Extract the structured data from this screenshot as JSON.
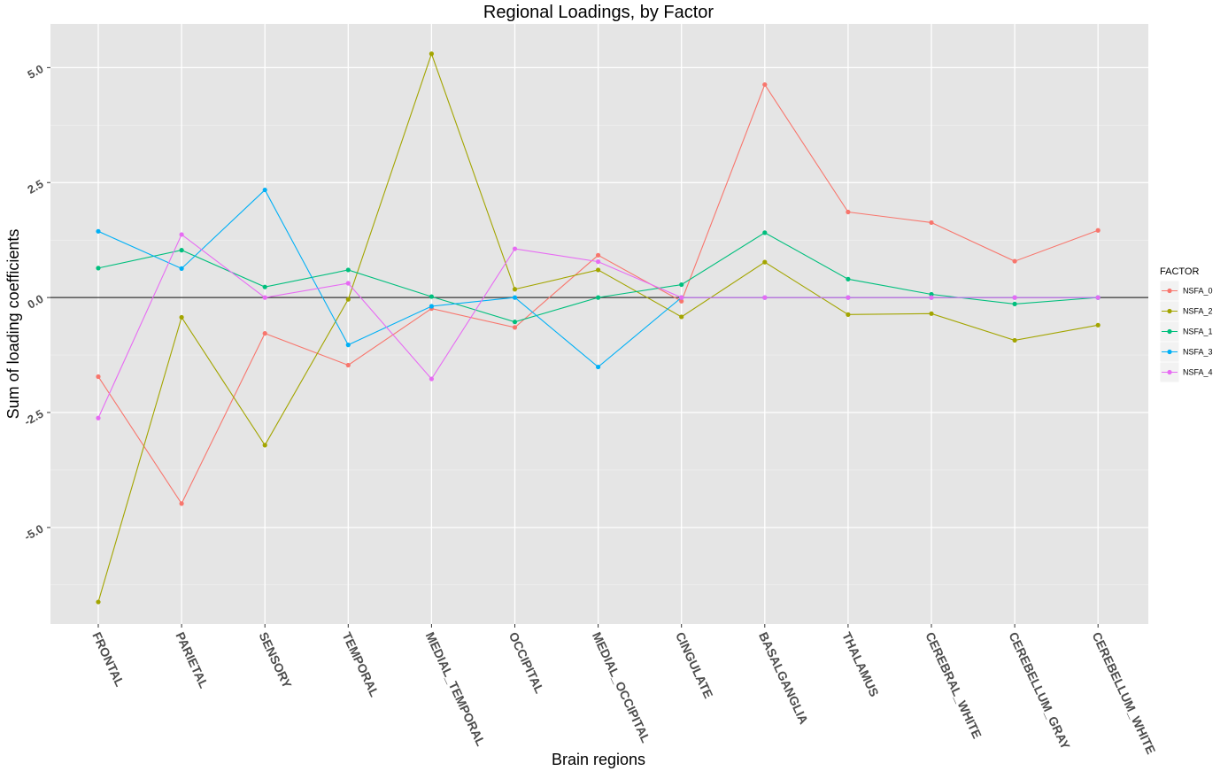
{
  "chart_data": {
    "type": "line",
    "title": "Regional Loadings, by Factor",
    "xlabel": "Brain regions",
    "ylabel": "Sum of loading coefficients",
    "categories": [
      "FRONTAL",
      "PARIETAL",
      "SENSORY",
      "TEMPORAL",
      "MEDIAL_TEMPORAL",
      "OCCIPITAL",
      "MEDIAL_OCCIPITAL",
      "CINGULATE",
      "BASALGANGLIA",
      "THALAMUS",
      "CEREBRAL_WHITE",
      "CEREBELLUM_GRAY",
      "CEREBELLUM_WHITE"
    ],
    "ylim": [
      -7.1,
      5.95
    ],
    "yticks": [
      -5.0,
      -2.5,
      0.0,
      2.5,
      5.0
    ],
    "ytick_labels": [
      "-5.0",
      "-2.5",
      "0.0",
      "2.5",
      "5.0"
    ],
    "hline": 0,
    "grid": true,
    "legend_title": "FACTOR",
    "legend_position": "right",
    "series": [
      {
        "name": "NSFA_0",
        "color": "#F8766D",
        "values": [
          -1.72,
          -4.48,
          -0.78,
          -1.47,
          -0.24,
          -0.65,
          0.92,
          -0.08,
          4.63,
          1.86,
          1.63,
          0.79,
          1.46
        ]
      },
      {
        "name": "NSFA_2",
        "color": "#A3A500",
        "values": [
          -6.62,
          -0.43,
          -3.21,
          -0.04,
          5.3,
          0.18,
          0.6,
          -0.42,
          0.77,
          -0.37,
          -0.35,
          -0.93,
          -0.6
        ]
      },
      {
        "name": "NSFA_1",
        "color": "#00BF7D",
        "values": [
          0.64,
          1.03,
          0.23,
          0.6,
          0.02,
          -0.53,
          0.0,
          0.28,
          1.41,
          0.4,
          0.07,
          -0.14,
          0.0
        ]
      },
      {
        "name": "NSFA_3",
        "color": "#00B0F6",
        "values": [
          1.44,
          0.63,
          2.34,
          -1.03,
          -0.19,
          0.0,
          -1.51,
          0.0,
          0.0,
          0.0,
          0.0,
          0.0,
          0.0
        ]
      },
      {
        "name": "NSFA_4",
        "color": "#E76BF3",
        "values": [
          -2.62,
          1.37,
          0.0,
          0.31,
          -1.77,
          1.06,
          0.78,
          0.0,
          0.0,
          0.0,
          0.0,
          0.0,
          0.0
        ]
      }
    ]
  }
}
